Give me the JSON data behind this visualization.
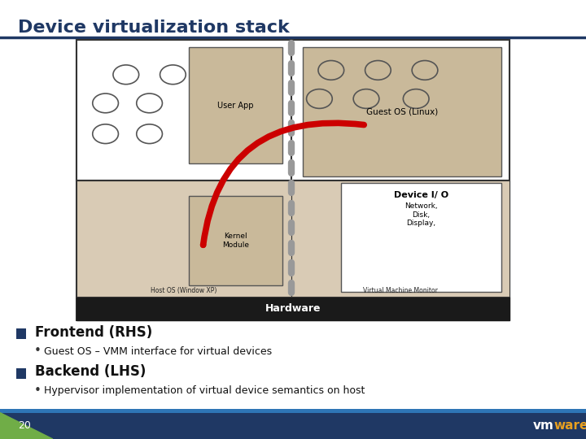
{
  "title": "Device virtualization stack",
  "title_color": "#1f3864",
  "bg_color": "#ffffff",
  "title_line_color": "#1f3864",
  "diagram": {
    "lhs_label": "Host OS (Window XP)",
    "rhs_label": "Virtual Machine Monitor",
    "hardware_label": "Hardware",
    "guest_os_label": "Guest OS (Linux)",
    "device_io_label": "Device I/ O",
    "device_io_sub": "Network,\nDisk,\nDisplay,",
    "user_app_label": "User App",
    "kernel_label": "Kernel\nModule"
  },
  "bullets": [
    {
      "header": "Frontend (RHS)",
      "bullet": "Guest OS – VMM interface for virtual devices"
    },
    {
      "header": "Backend (LHS)",
      "bullet": "Hypervisor implementation of virtual device semantics on host"
    }
  ],
  "footer": {
    "page_number": "20",
    "green_accent": "#70ad47",
    "footer_bg": "#1f3864",
    "teal_bar": "#2e75b6",
    "ware_color": "#e8a020"
  }
}
